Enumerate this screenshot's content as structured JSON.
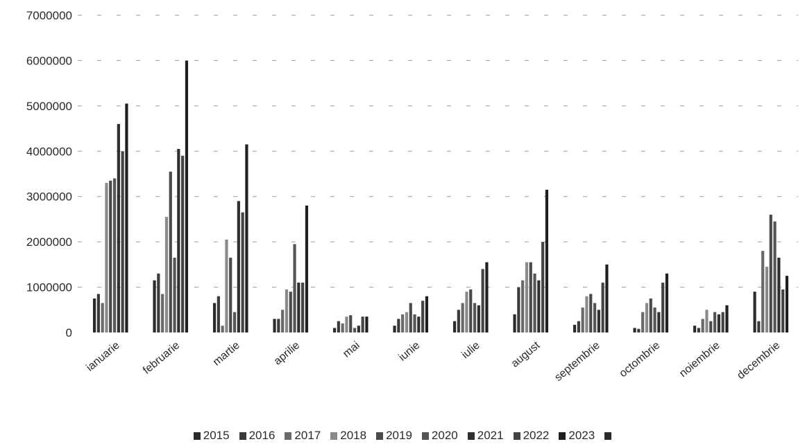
{
  "chart_data": {
    "type": "bar",
    "title": "",
    "xlabel": "",
    "ylabel": "",
    "ylim": [
      0,
      7000000
    ],
    "yticks": [
      0,
      1000000,
      2000000,
      3000000,
      4000000,
      5000000,
      6000000,
      7000000
    ],
    "ytick_labels": [
      "0",
      "1000000",
      "2000000",
      "3000000",
      "4000000",
      "5000000",
      "6000000",
      "7000000"
    ],
    "grid": "dashed horizontal",
    "legend_position": "bottom",
    "categories": [
      "ianuarie",
      "februarie",
      "martie",
      "aprilie",
      "mai",
      "iunie",
      "iulie",
      "august",
      "septembrie",
      "octombrie",
      "noiembrie",
      "decembrie"
    ],
    "series": [
      {
        "name": "2015",
        "color": "#2b2b2b",
        "values": [
          750000,
          1150000,
          650000,
          300000,
          100000,
          150000,
          250000,
          400000,
          170000,
          100000,
          150000,
          900000
        ]
      },
      {
        "name": "2016",
        "color": "#3a3a3a",
        "values": [
          850000,
          1300000,
          800000,
          300000,
          250000,
          300000,
          500000,
          1000000,
          250000,
          80000,
          100000,
          250000
        ]
      },
      {
        "name": "2017",
        "color": "#6a6a6a",
        "values": [
          650000,
          850000,
          150000,
          500000,
          200000,
          400000,
          650000,
          1150000,
          550000,
          450000,
          300000,
          1800000
        ]
      },
      {
        "name": "2018",
        "color": "#8a8a8a",
        "values": [
          3300000,
          2550000,
          2050000,
          950000,
          350000,
          450000,
          900000,
          1550000,
          800000,
          650000,
          500000,
          1450000
        ]
      },
      {
        "name": "2019",
        "color": "#4a4a4a",
        "values": [
          3350000,
          3550000,
          1650000,
          900000,
          380000,
          650000,
          950000,
          1550000,
          850000,
          750000,
          250000,
          2600000
        ]
      },
      {
        "name": "2020",
        "color": "#555555",
        "values": [
          3400000,
          1650000,
          450000,
          1950000,
          100000,
          400000,
          650000,
          1300000,
          650000,
          550000,
          450000,
          2450000
        ]
      },
      {
        "name": "2021",
        "color": "#2f2f2f",
        "values": [
          4600000,
          4050000,
          2900000,
          1100000,
          150000,
          350000,
          600000,
          1150000,
          500000,
          450000,
          400000,
          1650000
        ]
      },
      {
        "name": "2022",
        "color": "#444444",
        "values": [
          4000000,
          3900000,
          2650000,
          1100000,
          350000,
          700000,
          1400000,
          2000000,
          1100000,
          1100000,
          450000,
          950000
        ]
      },
      {
        "name": "2023",
        "color": "#1f1f1f",
        "values": [
          5050000,
          6000000,
          4150000,
          2800000,
          350000,
          800000,
          1550000,
          3150000,
          1500000,
          1300000,
          600000,
          1250000
        ]
      }
    ]
  }
}
